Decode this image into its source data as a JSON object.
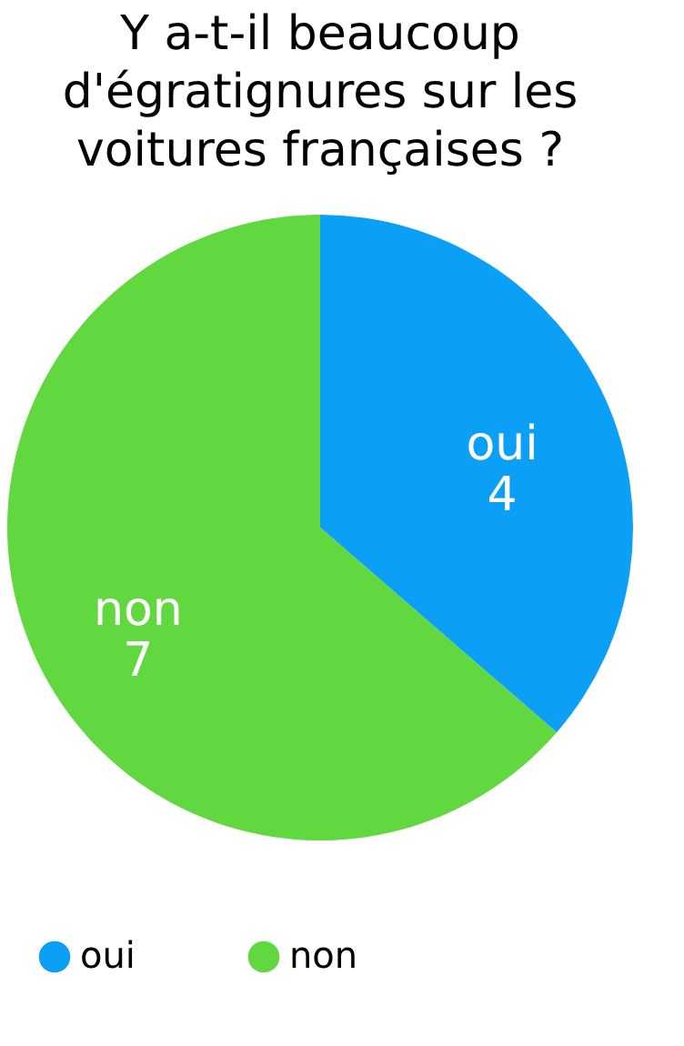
{
  "chart_data": {
    "type": "pie",
    "title": "Y a-t-il beaucoup d'égratignures sur les voitures françaises ?",
    "categories": [
      "oui",
      "non"
    ],
    "values": [
      4,
      7
    ],
    "colors": [
      "#0ba0f6",
      "#61d83f"
    ],
    "data_labels": true,
    "legend": "bottom"
  }
}
